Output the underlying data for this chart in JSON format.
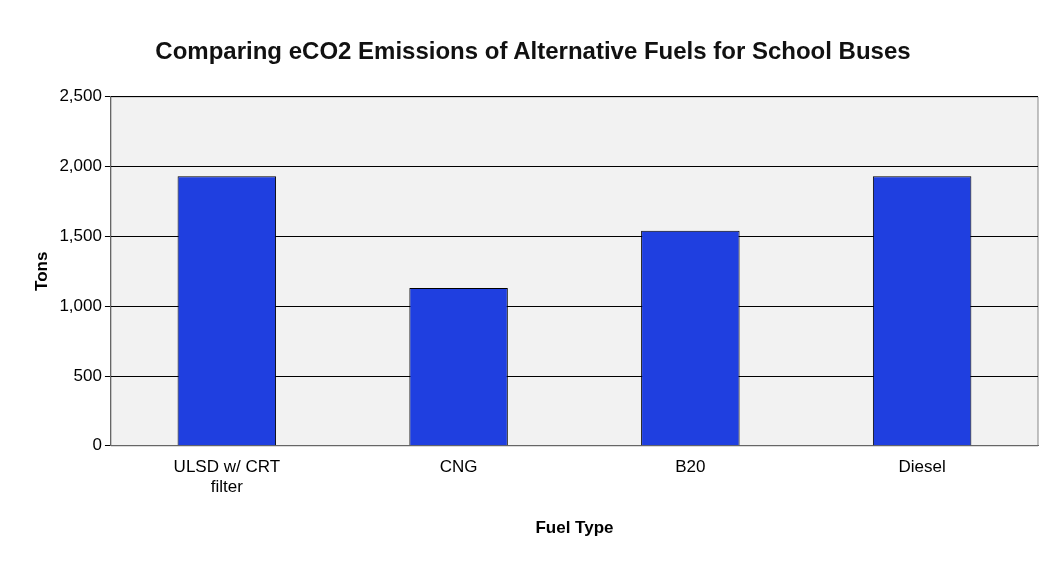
{
  "chart_data": {
    "type": "bar",
    "title": "Comparing eCO2 Emissions of Alternative Fuels for School Buses",
    "xlabel": "Fuel Type",
    "ylabel": "Tons",
    "categories": [
      "ULSD w/ CRT filter",
      "CNG",
      "B20",
      "Diesel"
    ],
    "values": [
      1930,
      1130,
      1540,
      1930
    ],
    "color": "#1f3fe0",
    "ylim": [
      0,
      2500
    ],
    "yticks": [
      {
        "value": 0,
        "label": "0"
      },
      {
        "value": 500,
        "label": "500"
      },
      {
        "value": 1000,
        "label": "1,000"
      },
      {
        "value": 1500,
        "label": "1,500"
      },
      {
        "value": 2000,
        "label": "2,000"
      },
      {
        "value": 2500,
        "label": "2,500"
      }
    ],
    "grid": "y",
    "legend": false
  }
}
